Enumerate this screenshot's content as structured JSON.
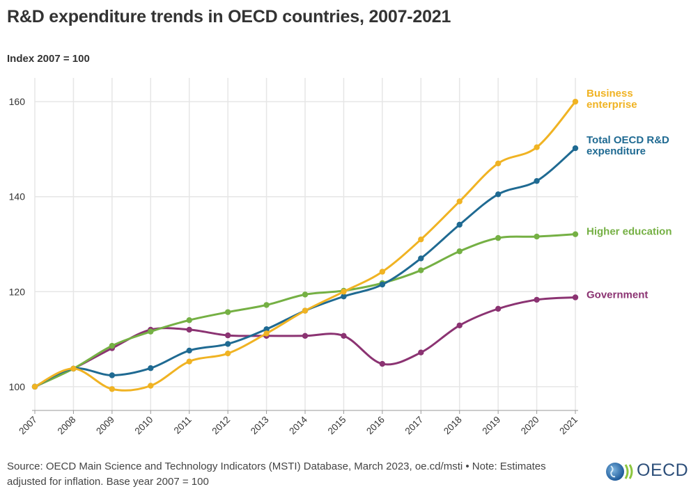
{
  "header": {
    "title": "R&D expenditure trends in OECD countries, 2007-2021",
    "subtitle": "Index 2007 = 100"
  },
  "footer": {
    "source_text": "Source: OECD Main Science and Technology Indicators (MSTI) Database, March 2023, oe.cd/msti • Note: Estimates adjusted for inflation. Base year 2007 = 100",
    "logo_text": "OECD"
  },
  "chart_data": {
    "type": "line",
    "title": "R&D expenditure trends in OECD countries, 2007-2021",
    "subtitle": "Index 2007 = 100",
    "x": [
      "2007",
      "2008",
      "2009",
      "2010",
      "2011",
      "2012",
      "2013",
      "2014",
      "2015",
      "2016",
      "2017",
      "2018",
      "2019",
      "2020",
      "2021"
    ],
    "ylim": [
      95,
      165
    ],
    "yticks": [
      100,
      120,
      140,
      160
    ],
    "grid": true,
    "legend": "direct labels at line ends (right)",
    "series": [
      {
        "name": "Business enterprise",
        "color": "#f0b323",
        "values": [
          100,
          103.8,
          99.5,
          100.2,
          105.3,
          107.0,
          111.2,
          116.0,
          120.0,
          124.2,
          131.0,
          139.0,
          147.0,
          150.4,
          160.0
        ]
      },
      {
        "name": "Total OECD R&D expenditure",
        "color": "#1f6a92",
        "values": [
          100,
          103.8,
          102.4,
          103.9,
          107.6,
          109.0,
          112.1,
          116.0,
          119.0,
          121.5,
          127.0,
          134.1,
          140.5,
          143.3,
          150.2
        ]
      },
      {
        "name": "Higher education",
        "color": "#75b044",
        "values": [
          100,
          103.8,
          108.6,
          111.6,
          114.0,
          115.7,
          117.2,
          119.4,
          120.2,
          121.8,
          124.5,
          128.5,
          131.3,
          131.6,
          132.1
        ]
      },
      {
        "name": "Government",
        "color": "#8b3372",
        "values": [
          100,
          103.8,
          108.1,
          112.0,
          112.0,
          110.8,
          110.7,
          110.7,
          110.7,
          104.8,
          107.2,
          112.9,
          116.4,
          118.3,
          118.8
        ]
      }
    ]
  }
}
